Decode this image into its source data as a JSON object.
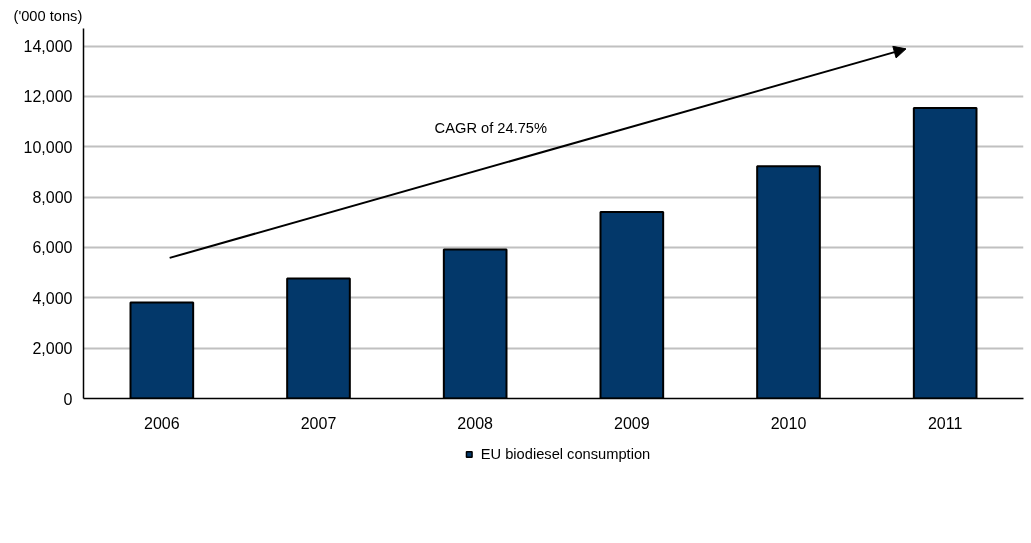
{
  "chart_data": {
    "type": "bar",
    "ylabel": "('000 tons)",
    "categories": [
      "2006",
      "2007",
      "2008",
      "2009",
      "2010",
      "2011"
    ],
    "series": [
      {
        "name": "EU biodiesel consumption",
        "color": "#03386a",
        "values": [
          3810,
          4770,
          5920,
          7410,
          9230,
          11540
        ]
      }
    ],
    "ylim": [
      0,
      14700
    ],
    "yticks": [
      0,
      {
        "value": 2000,
        "label": "2,000"
      },
      {
        "value": 4000,
        "label": "4,000"
      },
      {
        "value": 6000,
        "label": "6,000"
      },
      {
        "value": 8000,
        "label": "8,000"
      },
      {
        "value": 10000,
        "label": "10,000"
      },
      {
        "value": 12000,
        "label": "12,000"
      },
      {
        "value": 14000,
        "label": "14,000"
      }
    ],
    "grid": "y",
    "legend": "bottom",
    "annotations": [
      "CAGR of 24.75%"
    ]
  }
}
